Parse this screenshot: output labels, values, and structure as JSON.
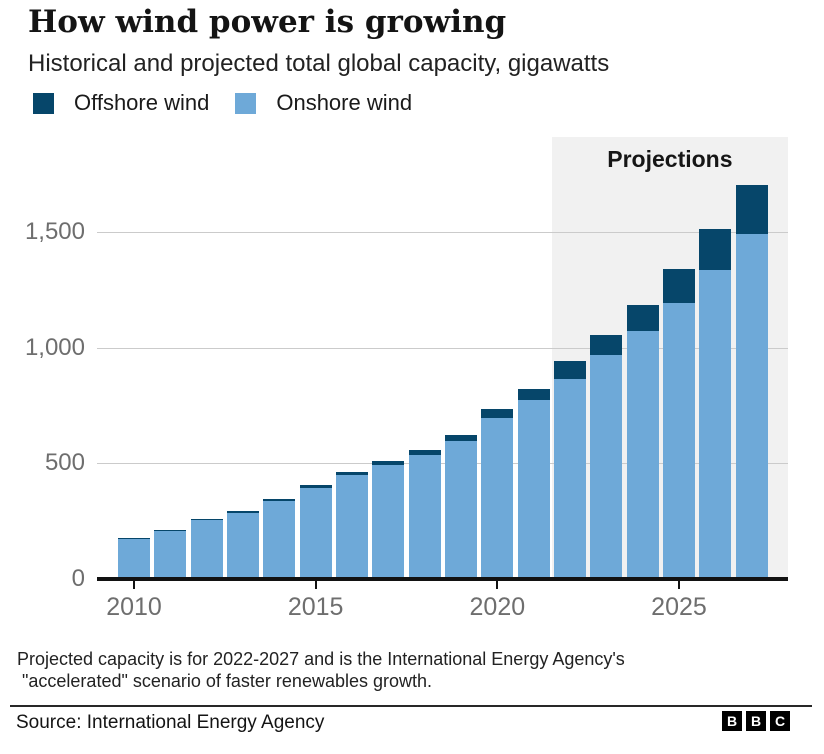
{
  "header": {
    "title": "How wind power is growing",
    "subtitle": "Historical and projected total global capacity, gigawatts"
  },
  "legend": {
    "items": [
      {
        "label": "Offshore wind",
        "color": "#06466a"
      },
      {
        "label": "Onshore wind",
        "color": "#6ea9d8"
      }
    ]
  },
  "chart_data": {
    "type": "bar",
    "stacked": true,
    "title": "How wind power is growing",
    "subtitle": "Historical and projected total global capacity, gigawatts",
    "unit": "gigawatts",
    "categories": [
      2010,
      2011,
      2012,
      2013,
      2014,
      2015,
      2016,
      2017,
      2018,
      2019,
      2020,
      2021,
      2022,
      2023,
      2024,
      2025,
      2026,
      2027
    ],
    "series": [
      {
        "name": "Offshore wind",
        "color": "#06466a",
        "values": [
          3,
          4,
          5,
          7,
          8,
          12,
          14,
          19,
          23,
          28,
          36,
          48,
          78,
          89,
          113,
          147,
          177,
          212
        ]
      },
      {
        "name": "Onshore wind",
        "color": "#6ea9d8",
        "values": [
          174,
          208,
          254,
          287,
          336,
          394,
          449,
          491,
          535,
          595,
          697,
          774,
          865,
          968,
          1072,
          1193,
          1336,
          1491
        ]
      }
    ],
    "ylim": [
      0,
      1750
    ],
    "y_ticks": [
      0,
      500,
      1000,
      1500
    ],
    "y_tick_labels": [
      "0",
      "500",
      "1,000",
      "1,500"
    ],
    "x_tick_years": [
      2010,
      2015,
      2020,
      2025
    ],
    "x_tick_labels": [
      "2010",
      "2015",
      "2020",
      "2025"
    ],
    "grid": "horizontal",
    "legend_position": "top",
    "projection": {
      "label": "Projections",
      "from_year": 2022,
      "to_year": 2027
    }
  },
  "footnote": {
    "lines": [
      "Projected capacity is for 2022-2027 and is the International Energy Agency's",
      " \"accelerated\" scenario of faster renewables growth."
    ]
  },
  "footer": {
    "source": "Source: International Energy Agency",
    "logo_letters": [
      "B",
      "B",
      "C"
    ]
  }
}
